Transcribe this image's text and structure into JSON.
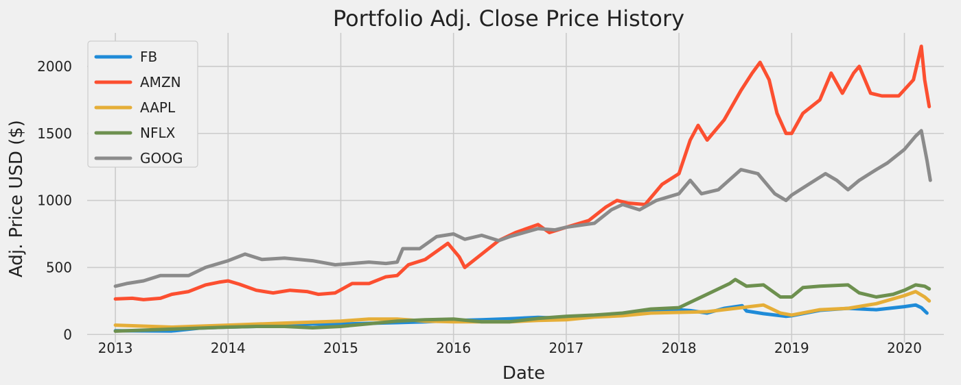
{
  "chart_data": {
    "type": "line",
    "title": "Portfolio Adj. Close Price History",
    "xlabel": "Date",
    "ylabel": "Adj. Price USD ($)",
    "xlim": [
      2012.75,
      2020.35
    ],
    "ylim": [
      -60,
      2250
    ],
    "xticks": [
      2013,
      2014,
      2015,
      2016,
      2017,
      2018,
      2019,
      2020
    ],
    "xtick_labels": [
      "2013",
      "2014",
      "2015",
      "2016",
      "2017",
      "2018",
      "2019",
      "2020"
    ],
    "yticks": [
      0,
      500,
      1000,
      1500,
      2000
    ],
    "ytick_labels": [
      "0",
      "500",
      "1000",
      "1500",
      "2000"
    ],
    "grid": true,
    "legend_position": "top-left",
    "series": [
      {
        "name": "FB",
        "color": "#1f8bd8",
        "points": [
          [
            2013.0,
            28
          ],
          [
            2013.25,
            27
          ],
          [
            2013.5,
            26
          ],
          [
            2013.75,
            48
          ],
          [
            2014.0,
            55
          ],
          [
            2014.25,
            60
          ],
          [
            2014.5,
            72
          ],
          [
            2014.75,
            78
          ],
          [
            2015.0,
            78
          ],
          [
            2015.25,
            83
          ],
          [
            2015.5,
            88
          ],
          [
            2015.75,
            95
          ],
          [
            2016.0,
            104
          ],
          [
            2016.25,
            110
          ],
          [
            2016.5,
            118
          ],
          [
            2016.75,
            128
          ],
          [
            2017.0,
            120
          ],
          [
            2017.25,
            140
          ],
          [
            2017.5,
            150
          ],
          [
            2017.75,
            170
          ],
          [
            2018.0,
            185
          ],
          [
            2018.1,
            178
          ],
          [
            2018.25,
            160
          ],
          [
            2018.4,
            195
          ],
          [
            2018.56,
            215
          ],
          [
            2018.6,
            175
          ],
          [
            2018.75,
            155
          ],
          [
            2018.95,
            135
          ],
          [
            2019.0,
            140
          ],
          [
            2019.25,
            180
          ],
          [
            2019.5,
            195
          ],
          [
            2019.75,
            185
          ],
          [
            2020.0,
            208
          ],
          [
            2020.1,
            220
          ],
          [
            2020.15,
            200
          ],
          [
            2020.2,
            160
          ]
        ]
      },
      {
        "name": "AMZN",
        "color": "#fc4f30",
        "points": [
          [
            2013.0,
            265
          ],
          [
            2013.15,
            270
          ],
          [
            2013.25,
            260
          ],
          [
            2013.4,
            270
          ],
          [
            2013.5,
            300
          ],
          [
            2013.65,
            320
          ],
          [
            2013.8,
            370
          ],
          [
            2013.92,
            390
          ],
          [
            2014.0,
            400
          ],
          [
            2014.1,
            375
          ],
          [
            2014.25,
            330
          ],
          [
            2014.4,
            310
          ],
          [
            2014.55,
            330
          ],
          [
            2014.7,
            320
          ],
          [
            2014.8,
            300
          ],
          [
            2014.95,
            310
          ],
          [
            2015.1,
            380
          ],
          [
            2015.25,
            380
          ],
          [
            2015.4,
            430
          ],
          [
            2015.5,
            440
          ],
          [
            2015.6,
            520
          ],
          [
            2015.75,
            560
          ],
          [
            2015.95,
            680
          ],
          [
            2016.05,
            580
          ],
          [
            2016.1,
            500
          ],
          [
            2016.25,
            600
          ],
          [
            2016.4,
            700
          ],
          [
            2016.55,
            760
          ],
          [
            2016.75,
            820
          ],
          [
            2016.85,
            760
          ],
          [
            2017.0,
            800
          ],
          [
            2017.2,
            850
          ],
          [
            2017.35,
            950
          ],
          [
            2017.45,
            1000
          ],
          [
            2017.55,
            980
          ],
          [
            2017.7,
            970
          ],
          [
            2017.85,
            1120
          ],
          [
            2018.0,
            1200
          ],
          [
            2018.1,
            1450
          ],
          [
            2018.17,
            1560
          ],
          [
            2018.25,
            1450
          ],
          [
            2018.4,
            1600
          ],
          [
            2018.55,
            1820
          ],
          [
            2018.65,
            1950
          ],
          [
            2018.72,
            2030
          ],
          [
            2018.8,
            1900
          ],
          [
            2018.87,
            1650
          ],
          [
            2018.95,
            1500
          ],
          [
            2019.0,
            1500
          ],
          [
            2019.1,
            1650
          ],
          [
            2019.25,
            1750
          ],
          [
            2019.35,
            1950
          ],
          [
            2019.45,
            1800
          ],
          [
            2019.55,
            1950
          ],
          [
            2019.6,
            2000
          ],
          [
            2019.7,
            1800
          ],
          [
            2019.8,
            1780
          ],
          [
            2019.95,
            1780
          ],
          [
            2020.08,
            1900
          ],
          [
            2020.15,
            2150
          ],
          [
            2020.18,
            1900
          ],
          [
            2020.22,
            1700
          ]
        ]
      },
      {
        "name": "AAPL",
        "color": "#e5ae38",
        "points": [
          [
            2013.0,
            70
          ],
          [
            2013.5,
            55
          ],
          [
            2014.0,
            70
          ],
          [
            2014.5,
            85
          ],
          [
            2015.0,
            100
          ],
          [
            2015.25,
            115
          ],
          [
            2015.5,
            115
          ],
          [
            2015.75,
            100
          ],
          [
            2016.0,
            95
          ],
          [
            2016.25,
            95
          ],
          [
            2016.5,
            95
          ],
          [
            2016.75,
            105
          ],
          [
            2017.0,
            110
          ],
          [
            2017.25,
            130
          ],
          [
            2017.5,
            140
          ],
          [
            2017.75,
            160
          ],
          [
            2018.0,
            165
          ],
          [
            2018.25,
            170
          ],
          [
            2018.5,
            195
          ],
          [
            2018.75,
            220
          ],
          [
            2018.9,
            160
          ],
          [
            2019.0,
            145
          ],
          [
            2019.25,
            185
          ],
          [
            2019.5,
            195
          ],
          [
            2019.75,
            230
          ],
          [
            2020.0,
            290
          ],
          [
            2020.1,
            320
          ],
          [
            2020.18,
            280
          ],
          [
            2020.22,
            250
          ]
        ]
      },
      {
        "name": "NFLX",
        "color": "#6d904f",
        "points": [
          [
            2013.0,
            25
          ],
          [
            2013.5,
            40
          ],
          [
            2014.0,
            55
          ],
          [
            2014.25,
            60
          ],
          [
            2014.5,
            60
          ],
          [
            2014.75,
            50
          ],
          [
            2015.0,
            60
          ],
          [
            2015.25,
            80
          ],
          [
            2015.5,
            100
          ],
          [
            2015.75,
            110
          ],
          [
            2016.0,
            115
          ],
          [
            2016.25,
            95
          ],
          [
            2016.5,
            95
          ],
          [
            2016.75,
            120
          ],
          [
            2017.0,
            135
          ],
          [
            2017.25,
            145
          ],
          [
            2017.5,
            160
          ],
          [
            2017.75,
            190
          ],
          [
            2018.0,
            200
          ],
          [
            2018.15,
            260
          ],
          [
            2018.3,
            320
          ],
          [
            2018.45,
            380
          ],
          [
            2018.5,
            410
          ],
          [
            2018.6,
            360
          ],
          [
            2018.75,
            370
          ],
          [
            2018.9,
            280
          ],
          [
            2019.0,
            280
          ],
          [
            2019.1,
            350
          ],
          [
            2019.25,
            360
          ],
          [
            2019.5,
            370
          ],
          [
            2019.6,
            310
          ],
          [
            2019.75,
            280
          ],
          [
            2019.9,
            300
          ],
          [
            2020.0,
            330
          ],
          [
            2020.1,
            370
          ],
          [
            2020.18,
            360
          ],
          [
            2020.22,
            340
          ]
        ]
      },
      {
        "name": "GOOG",
        "color": "#8b8b8b",
        "points": [
          [
            2013.0,
            360
          ],
          [
            2013.1,
            380
          ],
          [
            2013.25,
            400
          ],
          [
            2013.4,
            440
          ],
          [
            2013.5,
            440
          ],
          [
            2013.65,
            440
          ],
          [
            2013.8,
            500
          ],
          [
            2014.0,
            550
          ],
          [
            2014.15,
            600
          ],
          [
            2014.3,
            560
          ],
          [
            2014.5,
            570
          ],
          [
            2014.75,
            550
          ],
          [
            2014.95,
            520
          ],
          [
            2015.1,
            530
          ],
          [
            2015.25,
            540
          ],
          [
            2015.4,
            530
          ],
          [
            2015.5,
            540
          ],
          [
            2015.55,
            640
          ],
          [
            2015.7,
            640
          ],
          [
            2015.85,
            730
          ],
          [
            2016.0,
            750
          ],
          [
            2016.1,
            710
          ],
          [
            2016.25,
            740
          ],
          [
            2016.4,
            700
          ],
          [
            2016.5,
            730
          ],
          [
            2016.75,
            790
          ],
          [
            2016.9,
            780
          ],
          [
            2017.0,
            800
          ],
          [
            2017.25,
            830
          ],
          [
            2017.4,
            930
          ],
          [
            2017.5,
            970
          ],
          [
            2017.65,
            930
          ],
          [
            2017.8,
            1000
          ],
          [
            2018.0,
            1050
          ],
          [
            2018.1,
            1150
          ],
          [
            2018.2,
            1050
          ],
          [
            2018.35,
            1080
          ],
          [
            2018.55,
            1230
          ],
          [
            2018.7,
            1200
          ],
          [
            2018.85,
            1050
          ],
          [
            2018.95,
            1000
          ],
          [
            2019.0,
            1040
          ],
          [
            2019.15,
            1120
          ],
          [
            2019.3,
            1200
          ],
          [
            2019.4,
            1150
          ],
          [
            2019.5,
            1080
          ],
          [
            2019.6,
            1150
          ],
          [
            2019.75,
            1230
          ],
          [
            2019.85,
            1280
          ],
          [
            2020.0,
            1380
          ],
          [
            2020.1,
            1480
          ],
          [
            2020.15,
            1520
          ],
          [
            2020.2,
            1300
          ],
          [
            2020.23,
            1150
          ]
        ]
      }
    ]
  }
}
